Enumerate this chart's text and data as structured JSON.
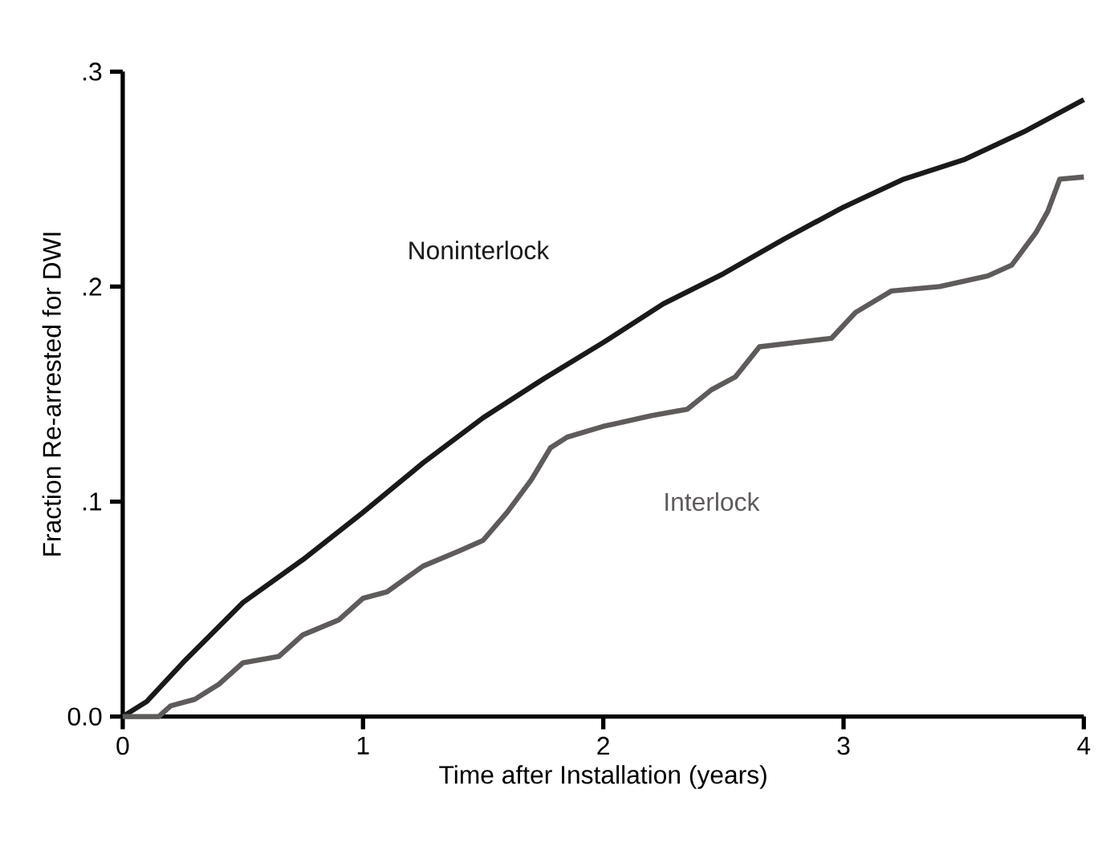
{
  "chart_data": {
    "type": "line",
    "xlabel": "Time after Installation (years)",
    "ylabel": "Fraction Re-arrested for DWI",
    "xlim": [
      0,
      4
    ],
    "ylim": [
      0,
      0.3
    ],
    "xticks": [
      0,
      1,
      2,
      3,
      4
    ],
    "yticks": [
      {
        "value": 0,
        "label": "0.0"
      },
      {
        "value": 0.1,
        "label": ".1"
      },
      {
        "value": 0.2,
        "label": ".2"
      },
      {
        "value": 0.3,
        "label": ".3"
      }
    ],
    "grid": false,
    "legend": false,
    "marker": "none",
    "line_style": "solid",
    "series": [
      {
        "name": "Noninterlock",
        "color": "#1a1a1a",
        "x": [
          0,
          0.1,
          0.25,
          0.5,
          0.75,
          1,
          1.25,
          1.5,
          1.75,
          2,
          2.25,
          2.5,
          2.75,
          3,
          3.25,
          3.5,
          3.75,
          4
        ],
        "values": [
          0,
          0.007,
          0.025,
          0.053,
          0.073,
          0.095,
          0.118,
          0.139,
          0.157,
          0.174,
          0.192,
          0.206,
          0.222,
          0.237,
          0.25,
          0.259,
          0.272,
          0.287
        ]
      },
      {
        "name": "Interlock",
        "color": "#5f5b5b",
        "x": [
          0,
          0.15,
          0.2,
          0.3,
          0.4,
          0.5,
          0.65,
          0.75,
          0.9,
          1,
          1.1,
          1.25,
          1.4,
          1.5,
          1.6,
          1.7,
          1.78,
          1.85,
          2,
          2.2,
          2.35,
          2.45,
          2.55,
          2.65,
          2.8,
          2.95,
          3.05,
          3.2,
          3.4,
          3.6,
          3.7,
          3.8,
          3.85,
          3.9,
          4
        ],
        "values": [
          0,
          0,
          0.005,
          0.008,
          0.015,
          0.025,
          0.028,
          0.038,
          0.045,
          0.055,
          0.058,
          0.07,
          0.077,
          0.082,
          0.095,
          0.11,
          0.125,
          0.13,
          0.135,
          0.14,
          0.143,
          0.152,
          0.158,
          0.172,
          0.174,
          0.176,
          0.188,
          0.198,
          0.2,
          0.205,
          0.21,
          0.225,
          0.235,
          0.25,
          0.251
        ]
      }
    ]
  }
}
